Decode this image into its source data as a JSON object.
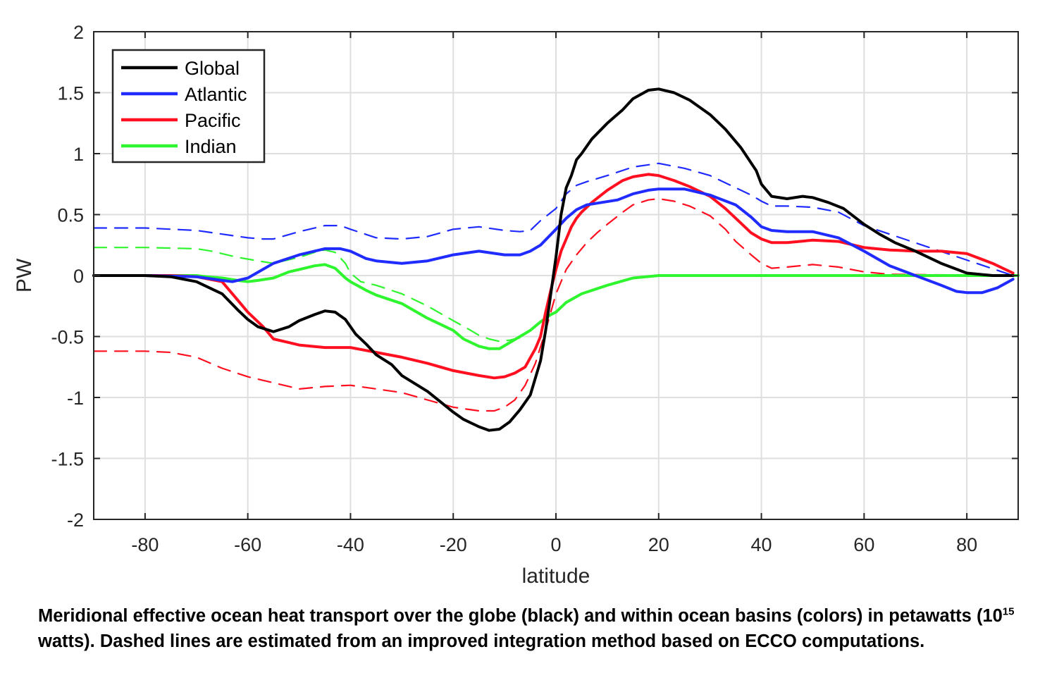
{
  "chart_data": {
    "type": "line",
    "xlabel": "latitude",
    "ylabel": "PW",
    "xlim": [
      -90,
      90
    ],
    "ylim": [
      -2,
      2
    ],
    "xticks": [
      -80,
      -60,
      -40,
      -20,
      0,
      20,
      40,
      60,
      80
    ],
    "yticks": [
      -2,
      -1.5,
      -1,
      -0.5,
      0,
      0.5,
      1,
      1.5,
      2
    ],
    "ytick_labels": [
      "-2",
      "-1.5",
      "-1",
      "-0.5",
      "0",
      "0.5",
      "1",
      "1.5",
      "2"
    ],
    "grid": true,
    "legend_position": "top-left",
    "series": [
      {
        "name": "Global",
        "color": "#000000",
        "style": "solid",
        "x": [
          -90,
          -80,
          -75,
          -70,
          -65,
          -62,
          -60,
          -58,
          -55,
          -52,
          -50,
          -47,
          -45,
          -43,
          -41,
          -39,
          -37,
          -35,
          -32,
          -30,
          -25,
          -20,
          -18,
          -15,
          -13,
          -11,
          -9,
          -7,
          -5,
          -3,
          -2,
          -1,
          0,
          1,
          2,
          3,
          4,
          5,
          7,
          10,
          13,
          15,
          18,
          20,
          23,
          26,
          30,
          33,
          36,
          39,
          40,
          42,
          45,
          48,
          50,
          53,
          56,
          60,
          63,
          66,
          70,
          75,
          80,
          85,
          89
        ],
        "y": [
          0,
          0,
          -0.01,
          -0.05,
          -0.15,
          -0.28,
          -0.36,
          -0.42,
          -0.46,
          -0.42,
          -0.37,
          -0.32,
          -0.29,
          -0.3,
          -0.36,
          -0.48,
          -0.56,
          -0.65,
          -0.73,
          -0.82,
          -0.95,
          -1.12,
          -1.18,
          -1.24,
          -1.27,
          -1.26,
          -1.2,
          -1.1,
          -0.98,
          -0.7,
          -0.45,
          -0.15,
          0.15,
          0.5,
          0.72,
          0.82,
          0.95,
          1.0,
          1.12,
          1.25,
          1.36,
          1.45,
          1.52,
          1.53,
          1.5,
          1.44,
          1.32,
          1.2,
          1.05,
          0.86,
          0.75,
          0.65,
          0.63,
          0.65,
          0.64,
          0.6,
          0.55,
          0.42,
          0.34,
          0.27,
          0.2,
          0.1,
          0.02,
          0.0,
          0.0
        ]
      },
      {
        "name": "Atlantic",
        "color": "#1f2bff",
        "style": "solid",
        "x": [
          -90,
          -80,
          -70,
          -65,
          -63,
          -60,
          -55,
          -50,
          -45,
          -42,
          -40,
          -37,
          -35,
          -30,
          -25,
          -20,
          -15,
          -10,
          -7,
          -5,
          -3,
          0,
          2,
          4,
          6,
          9,
          12,
          15,
          18,
          20,
          25,
          30,
          35,
          38,
          40,
          42,
          45,
          50,
          55,
          60,
          65,
          70,
          75,
          78,
          80,
          83,
          86,
          89
        ],
        "y": [
          0,
          0,
          -0.01,
          -0.04,
          -0.05,
          -0.02,
          0.1,
          0.17,
          0.22,
          0.22,
          0.2,
          0.14,
          0.12,
          0.1,
          0.12,
          0.17,
          0.2,
          0.17,
          0.17,
          0.2,
          0.25,
          0.38,
          0.47,
          0.54,
          0.58,
          0.6,
          0.62,
          0.67,
          0.7,
          0.71,
          0.71,
          0.66,
          0.58,
          0.48,
          0.4,
          0.37,
          0.36,
          0.36,
          0.31,
          0.2,
          0.08,
          0.0,
          -0.08,
          -0.13,
          -0.14,
          -0.14,
          -0.1,
          -0.03
        ]
      },
      {
        "name": "Pacific",
        "color": "#ff0f1f",
        "style": "solid",
        "x": [
          -90,
          -75,
          -70,
          -65,
          -62,
          -60,
          -57,
          -55,
          -52,
          -50,
          -45,
          -40,
          -35,
          -30,
          -25,
          -20,
          -15,
          -12,
          -10,
          -8,
          -6,
          -4,
          -3,
          -2,
          -1,
          0,
          1,
          2,
          3,
          4,
          5,
          7,
          10,
          13,
          15,
          18,
          20,
          23,
          26,
          30,
          33,
          36,
          38,
          40,
          42,
          45,
          50,
          55,
          58,
          60,
          65,
          70,
          75,
          80,
          85,
          89
        ],
        "y": [
          0,
          0,
          -0.01,
          -0.05,
          -0.2,
          -0.3,
          -0.42,
          -0.52,
          -0.55,
          -0.57,
          -0.59,
          -0.59,
          -0.63,
          -0.67,
          -0.72,
          -0.78,
          -0.82,
          -0.84,
          -0.83,
          -0.8,
          -0.75,
          -0.6,
          -0.5,
          -0.3,
          -0.12,
          0.05,
          0.2,
          0.3,
          0.4,
          0.47,
          0.52,
          0.6,
          0.7,
          0.78,
          0.81,
          0.83,
          0.82,
          0.78,
          0.73,
          0.65,
          0.55,
          0.43,
          0.35,
          0.3,
          0.27,
          0.27,
          0.29,
          0.28,
          0.25,
          0.23,
          0.21,
          0.2,
          0.2,
          0.18,
          0.1,
          0.02
        ]
      },
      {
        "name": "Indian",
        "color": "#2ef52e",
        "style": "solid",
        "x": [
          -90,
          -75,
          -70,
          -68,
          -65,
          -62,
          -60,
          -58,
          -55,
          -52,
          -50,
          -47,
          -45,
          -43,
          -41,
          -40,
          -37,
          -35,
          -30,
          -25,
          -20,
          -18,
          -15,
          -13,
          -11,
          -9,
          -7,
          -5,
          -3,
          -1,
          0,
          2,
          5,
          10,
          15,
          20,
          25,
          90
        ],
        "y": [
          0,
          0,
          0,
          -0.01,
          -0.02,
          -0.04,
          -0.05,
          -0.04,
          -0.02,
          0.03,
          0.05,
          0.08,
          0.09,
          0.06,
          -0.02,
          -0.05,
          -0.12,
          -0.16,
          -0.23,
          -0.35,
          -0.45,
          -0.52,
          -0.58,
          -0.6,
          -0.6,
          -0.55,
          -0.5,
          -0.45,
          -0.38,
          -0.32,
          -0.3,
          -0.22,
          -0.15,
          -0.08,
          -0.02,
          0.0,
          0.0,
          0.0
        ]
      },
      {
        "name": "",
        "color": "#1f2bff",
        "style": "dashed",
        "x": [
          -90,
          -80,
          -70,
          -65,
          -60,
          -57,
          -55,
          -50,
          -45,
          -42,
          -40,
          -35,
          -30,
          -25,
          -20,
          -15,
          -10,
          -7,
          -5,
          -3,
          0,
          2,
          4,
          6,
          10,
          15,
          20,
          25,
          30,
          35,
          38,
          40,
          42,
          45,
          50,
          55,
          60,
          89
        ],
        "y": [
          0.39,
          0.39,
          0.37,
          0.34,
          0.31,
          0.3,
          0.3,
          0.36,
          0.41,
          0.41,
          0.38,
          0.31,
          0.3,
          0.32,
          0.38,
          0.4,
          0.37,
          0.36,
          0.37,
          0.45,
          0.55,
          0.67,
          0.74,
          0.77,
          0.82,
          0.89,
          0.92,
          0.88,
          0.82,
          0.72,
          0.66,
          0.61,
          0.57,
          0.57,
          0.56,
          0.52,
          0.41,
          0.0
        ]
      },
      {
        "name": "",
        "color": "#ff0f1f",
        "style": "dashed",
        "x": [
          -90,
          -80,
          -75,
          -70,
          -65,
          -60,
          -55,
          -50,
          -45,
          -40,
          -35,
          -30,
          -25,
          -20,
          -15,
          -12,
          -10,
          -8,
          -6,
          -4,
          -2,
          0,
          2,
          4,
          6,
          8,
          10,
          13,
          15,
          18,
          20,
          23,
          26,
          30,
          33,
          35,
          38,
          40,
          42,
          45,
          50,
          55,
          60,
          65,
          89
        ],
        "y": [
          -0.62,
          -0.62,
          -0.63,
          -0.67,
          -0.76,
          -0.83,
          -0.88,
          -0.93,
          -0.91,
          -0.9,
          -0.93,
          -0.96,
          -1.02,
          -1.08,
          -1.11,
          -1.11,
          -1.08,
          -1.02,
          -0.9,
          -0.72,
          -0.45,
          -0.15,
          0.05,
          0.17,
          0.27,
          0.35,
          0.42,
          0.52,
          0.58,
          0.62,
          0.63,
          0.61,
          0.57,
          0.49,
          0.38,
          0.28,
          0.17,
          0.1,
          0.06,
          0.07,
          0.09,
          0.07,
          0.03,
          0.01,
          0.0
        ]
      },
      {
        "name": "",
        "color": "#2ef52e",
        "style": "dashed",
        "x": [
          -90,
          -80,
          -70,
          -67,
          -65,
          -62,
          -58,
          -55,
          -52,
          -50,
          -47,
          -45,
          -43,
          -41,
          -40,
          -38,
          -35,
          -30,
          -25,
          -20,
          -17,
          -15,
          -13,
          -11,
          -9,
          -7
        ],
        "y": [
          0.23,
          0.23,
          0.22,
          0.2,
          0.18,
          0.15,
          0.12,
          0.1,
          0.13,
          0.15,
          0.19,
          0.21,
          0.19,
          0.1,
          0.02,
          -0.05,
          -0.08,
          -0.15,
          -0.25,
          -0.37,
          -0.44,
          -0.49,
          -0.52,
          -0.54,
          -0.53,
          -0.51
        ]
      }
    ]
  },
  "caption": {
    "part1": "Meridional effective ocean heat transport over the globe (black) and within ocean basins (colors) in petawatts (10",
    "sup": "15",
    "part2": " watts). Dashed lines are estimated from an improved integration method based on ECCO computations."
  }
}
